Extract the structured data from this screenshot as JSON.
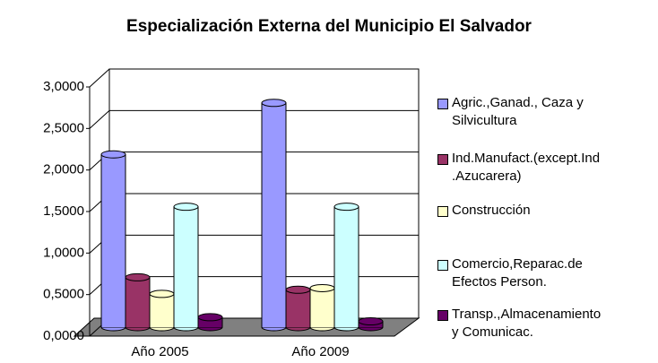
{
  "chart_data": {
    "type": "bar",
    "title": "Especialización Externa del Municipio El Salvador",
    "categories": [
      "Año 2005",
      "Año 2009"
    ],
    "series": [
      {
        "name": "Agric.,Ganad., Caza y\nSilvicultura",
        "color": "#9999ff",
        "values": [
          2.08,
          2.7
        ]
      },
      {
        "name": "Ind.Manufact.(except.Ind\n.Azucarera)",
        "color": "#993366",
        "values": [
          0.6,
          0.45
        ]
      },
      {
        "name": "Construcción",
        "color": "#ffffcc",
        "values": [
          0.4,
          0.47
        ]
      },
      {
        "name": "Comercio,Reparac.de\nEfectos Person.",
        "color": "#ccffff",
        "values": [
          1.45,
          1.45
        ]
      },
      {
        "name": "Transp.,Almacenamiento\ny Comunicac.",
        "color": "#660066",
        "values": [
          0.12,
          0.07
        ]
      }
    ],
    "ylim": [
      0,
      3
    ],
    "yticks": [
      {
        "value": 0,
        "label": "0,0000"
      },
      {
        "value": 0.5,
        "label": "0,5000"
      },
      {
        "value": 1,
        "label": "1,0000"
      },
      {
        "value": 1.5,
        "label": "1,5000"
      },
      {
        "value": 2,
        "label": "2,0000"
      },
      {
        "value": 2.5,
        "label": "2,5000"
      },
      {
        "value": 3,
        "label": "3,0000"
      }
    ],
    "grid": true
  }
}
